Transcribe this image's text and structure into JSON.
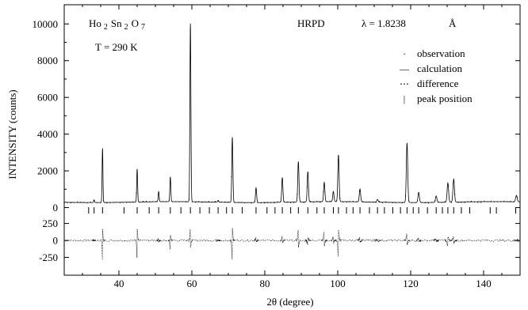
{
  "chart_data": {
    "type": "line",
    "sample": {
      "formula_parts": [
        "Ho",
        "2",
        "Sn",
        "2",
        "O",
        "7"
      ],
      "temperature": "T = 290 K"
    },
    "instrument": "HRPD",
    "wavelength": "λ = 1.8238",
    "wavelength_unit": "Å",
    "xlabel": "2θ (degree)",
    "ylabel": "INTENSITY  (counts)",
    "xlim": [
      25,
      150
    ],
    "xticks": [
      40,
      60,
      80,
      100,
      120,
      140
    ],
    "main_panel": {
      "ylim": [
        -150,
        10700
      ],
      "yticks": [
        0,
        2000,
        4000,
        6000,
        8000,
        10000
      ]
    },
    "diff_panel": {
      "ylim": [
        -420,
        420
      ],
      "yticks": [
        -250,
        0,
        250
      ]
    },
    "background": 300,
    "legend": {
      "position": "top-right",
      "entries": [
        {
          "symbol": "·",
          "label": "observation"
        },
        {
          "symbol": "—",
          "label": "calculation"
        },
        {
          "symbol": "⋯",
          "label": "difference"
        },
        {
          "symbol": "|",
          "label": "peak position"
        }
      ]
    },
    "peaks": [
      {
        "x": 33.2,
        "y": 150,
        "d": 10
      },
      {
        "x": 35.5,
        "y": 2950,
        "d": -280
      },
      {
        "x": 45.0,
        "y": 1800,
        "d": -260
      },
      {
        "x": 50.9,
        "y": 550,
        "d": 30
      },
      {
        "x": 54.1,
        "y": 1350,
        "d": -130
      },
      {
        "x": 59.6,
        "y": 9700,
        "d": 180
      },
      {
        "x": 67.2,
        "y": 100,
        "d": 0
      },
      {
        "x": 71.1,
        "y": 3550,
        "d": -300
      },
      {
        "x": 77.6,
        "y": 800,
        "d": 40
      },
      {
        "x": 84.8,
        "y": 1350,
        "d": 60
      },
      {
        "x": 89.2,
        "y": 2200,
        "d": 150
      },
      {
        "x": 91.8,
        "y": 1650,
        "d": -60
      },
      {
        "x": 96.3,
        "y": 1050,
        "d": 130
      },
      {
        "x": 98.8,
        "y": 550,
        "d": 60
      },
      {
        "x": 100.2,
        "y": 2550,
        "d": -250
      },
      {
        "x": 106.1,
        "y": 700,
        "d": 40
      },
      {
        "x": 110.9,
        "y": 150,
        "d": 10
      },
      {
        "x": 119.0,
        "y": 3250,
        "d": 100
      },
      {
        "x": 122.2,
        "y": 550,
        "d": 30
      },
      {
        "x": 127.0,
        "y": 350,
        "d": 20
      },
      {
        "x": 130.2,
        "y": 1050,
        "d": -90
      },
      {
        "x": 131.8,
        "y": 1250,
        "d": 70
      },
      {
        "x": 149.0,
        "y": 350,
        "d": 0
      }
    ],
    "peak_positions": [
      31.7,
      33.2,
      35.5,
      41.4,
      45.0,
      48.3,
      50.9,
      54.1,
      57.0,
      59.6,
      62.2,
      64.8,
      67.2,
      69.5,
      71.1,
      73.8,
      77.6,
      80.6,
      82.8,
      84.8,
      87.1,
      89.2,
      91.8,
      94.3,
      96.3,
      98.8,
      100.2,
      102.4,
      104.2,
      106.1,
      108.7,
      110.9,
      112.8,
      115.1,
      117.2,
      119.0,
      120.7,
      122.2,
      124.6,
      127.0,
      128.7,
      130.2,
      131.8,
      133.9,
      136.2,
      141.8,
      143.5,
      148.8
    ]
  }
}
